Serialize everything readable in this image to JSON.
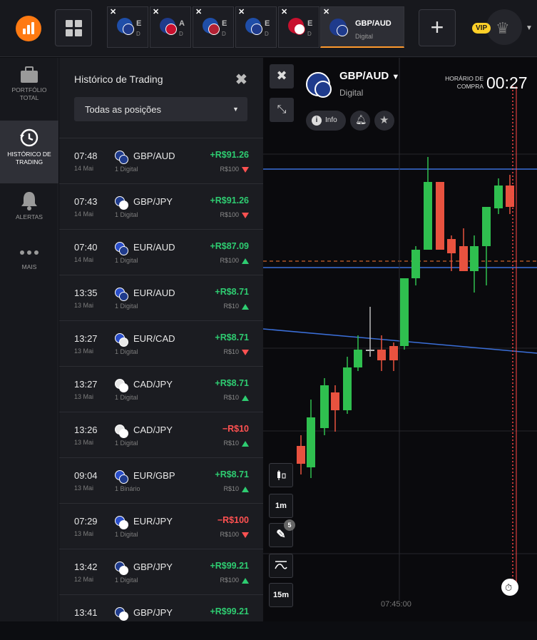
{
  "topbar": {
    "tabs": [
      {
        "letter": "E",
        "sub": "D"
      },
      {
        "letter": "A",
        "sub": "D"
      },
      {
        "letter": "E",
        "sub": "D"
      },
      {
        "letter": "E",
        "sub": "D"
      },
      {
        "letter": "E",
        "sub": "D"
      },
      {
        "pair": "GBP/AUD",
        "type": "Digital",
        "active": true
      }
    ],
    "vip_label": "VIP"
  },
  "sidebar": {
    "items": [
      {
        "label1": "PORTFÓLIO",
        "label2": "TOTAL"
      },
      {
        "label1": "HISTÓRICO DE",
        "label2": "TRADING"
      },
      {
        "label1": "ALERTAS",
        "label2": ""
      },
      {
        "label1": "MAIS",
        "label2": ""
      }
    ]
  },
  "history": {
    "title": "Histórico de Trading",
    "filter": "Todas as posições",
    "rows": [
      {
        "time": "07:48",
        "date": "14 Mai",
        "pair": "GBP/AUD",
        "type": "1 Digital",
        "profit": "+R$91.26",
        "stake": "R$100",
        "dir": "down"
      },
      {
        "time": "07:43",
        "date": "14 Mai",
        "pair": "GBP/JPY",
        "type": "1 Digital",
        "profit": "+R$91.26",
        "stake": "R$100",
        "dir": "down"
      },
      {
        "time": "07:40",
        "date": "14 Mai",
        "pair": "EUR/AUD",
        "type": "1 Digital",
        "profit": "+R$87.09",
        "stake": "R$100",
        "dir": "up"
      },
      {
        "time": "13:35",
        "date": "13 Mai",
        "pair": "EUR/AUD",
        "type": "1 Digital",
        "profit": "+R$8.71",
        "stake": "R$10",
        "dir": "up"
      },
      {
        "time": "13:27",
        "date": "13 Mai",
        "pair": "EUR/CAD",
        "type": "1 Digital",
        "profit": "+R$8.71",
        "stake": "R$10",
        "dir": "down"
      },
      {
        "time": "13:27",
        "date": "13 Mai",
        "pair": "CAD/JPY",
        "type": "1 Digital",
        "profit": "+R$8.71",
        "stake": "R$10",
        "dir": "up"
      },
      {
        "time": "13:26",
        "date": "13 Mai",
        "pair": "CAD/JPY",
        "type": "1 Digital",
        "profit": "−R$10",
        "stake": "R$10",
        "dir": "up"
      },
      {
        "time": "09:04",
        "date": "13 Mai",
        "pair": "EUR/GBP",
        "type": "1 Binário",
        "profit": "+R$8.71",
        "stake": "R$10",
        "dir": "up"
      },
      {
        "time": "07:29",
        "date": "13 Mai",
        "pair": "EUR/JPY",
        "type": "1 Digital",
        "profit": "−R$100",
        "stake": "R$100",
        "dir": "down"
      },
      {
        "time": "13:42",
        "date": "12 Mai",
        "pair": "GBP/JPY",
        "type": "1 Digital",
        "profit": "+R$99.21",
        "stake": "R$100",
        "dir": "up"
      },
      {
        "time": "13:41",
        "date": "",
        "pair": "GBP/JPY",
        "type": "",
        "profit": "+R$99.21",
        "stake": "",
        "dir": ""
      }
    ]
  },
  "chart": {
    "asset": "GBP/AUD",
    "asset_type": "Digital",
    "info_label": "Info",
    "buy_label_1": "HORÁRIO DE",
    "buy_label_2": "COMPRA",
    "buy_time": "00:27",
    "timeframe": "1m",
    "drawing_count": "5",
    "expiry": "15m",
    "x_tick": "07:45:00"
  }
}
